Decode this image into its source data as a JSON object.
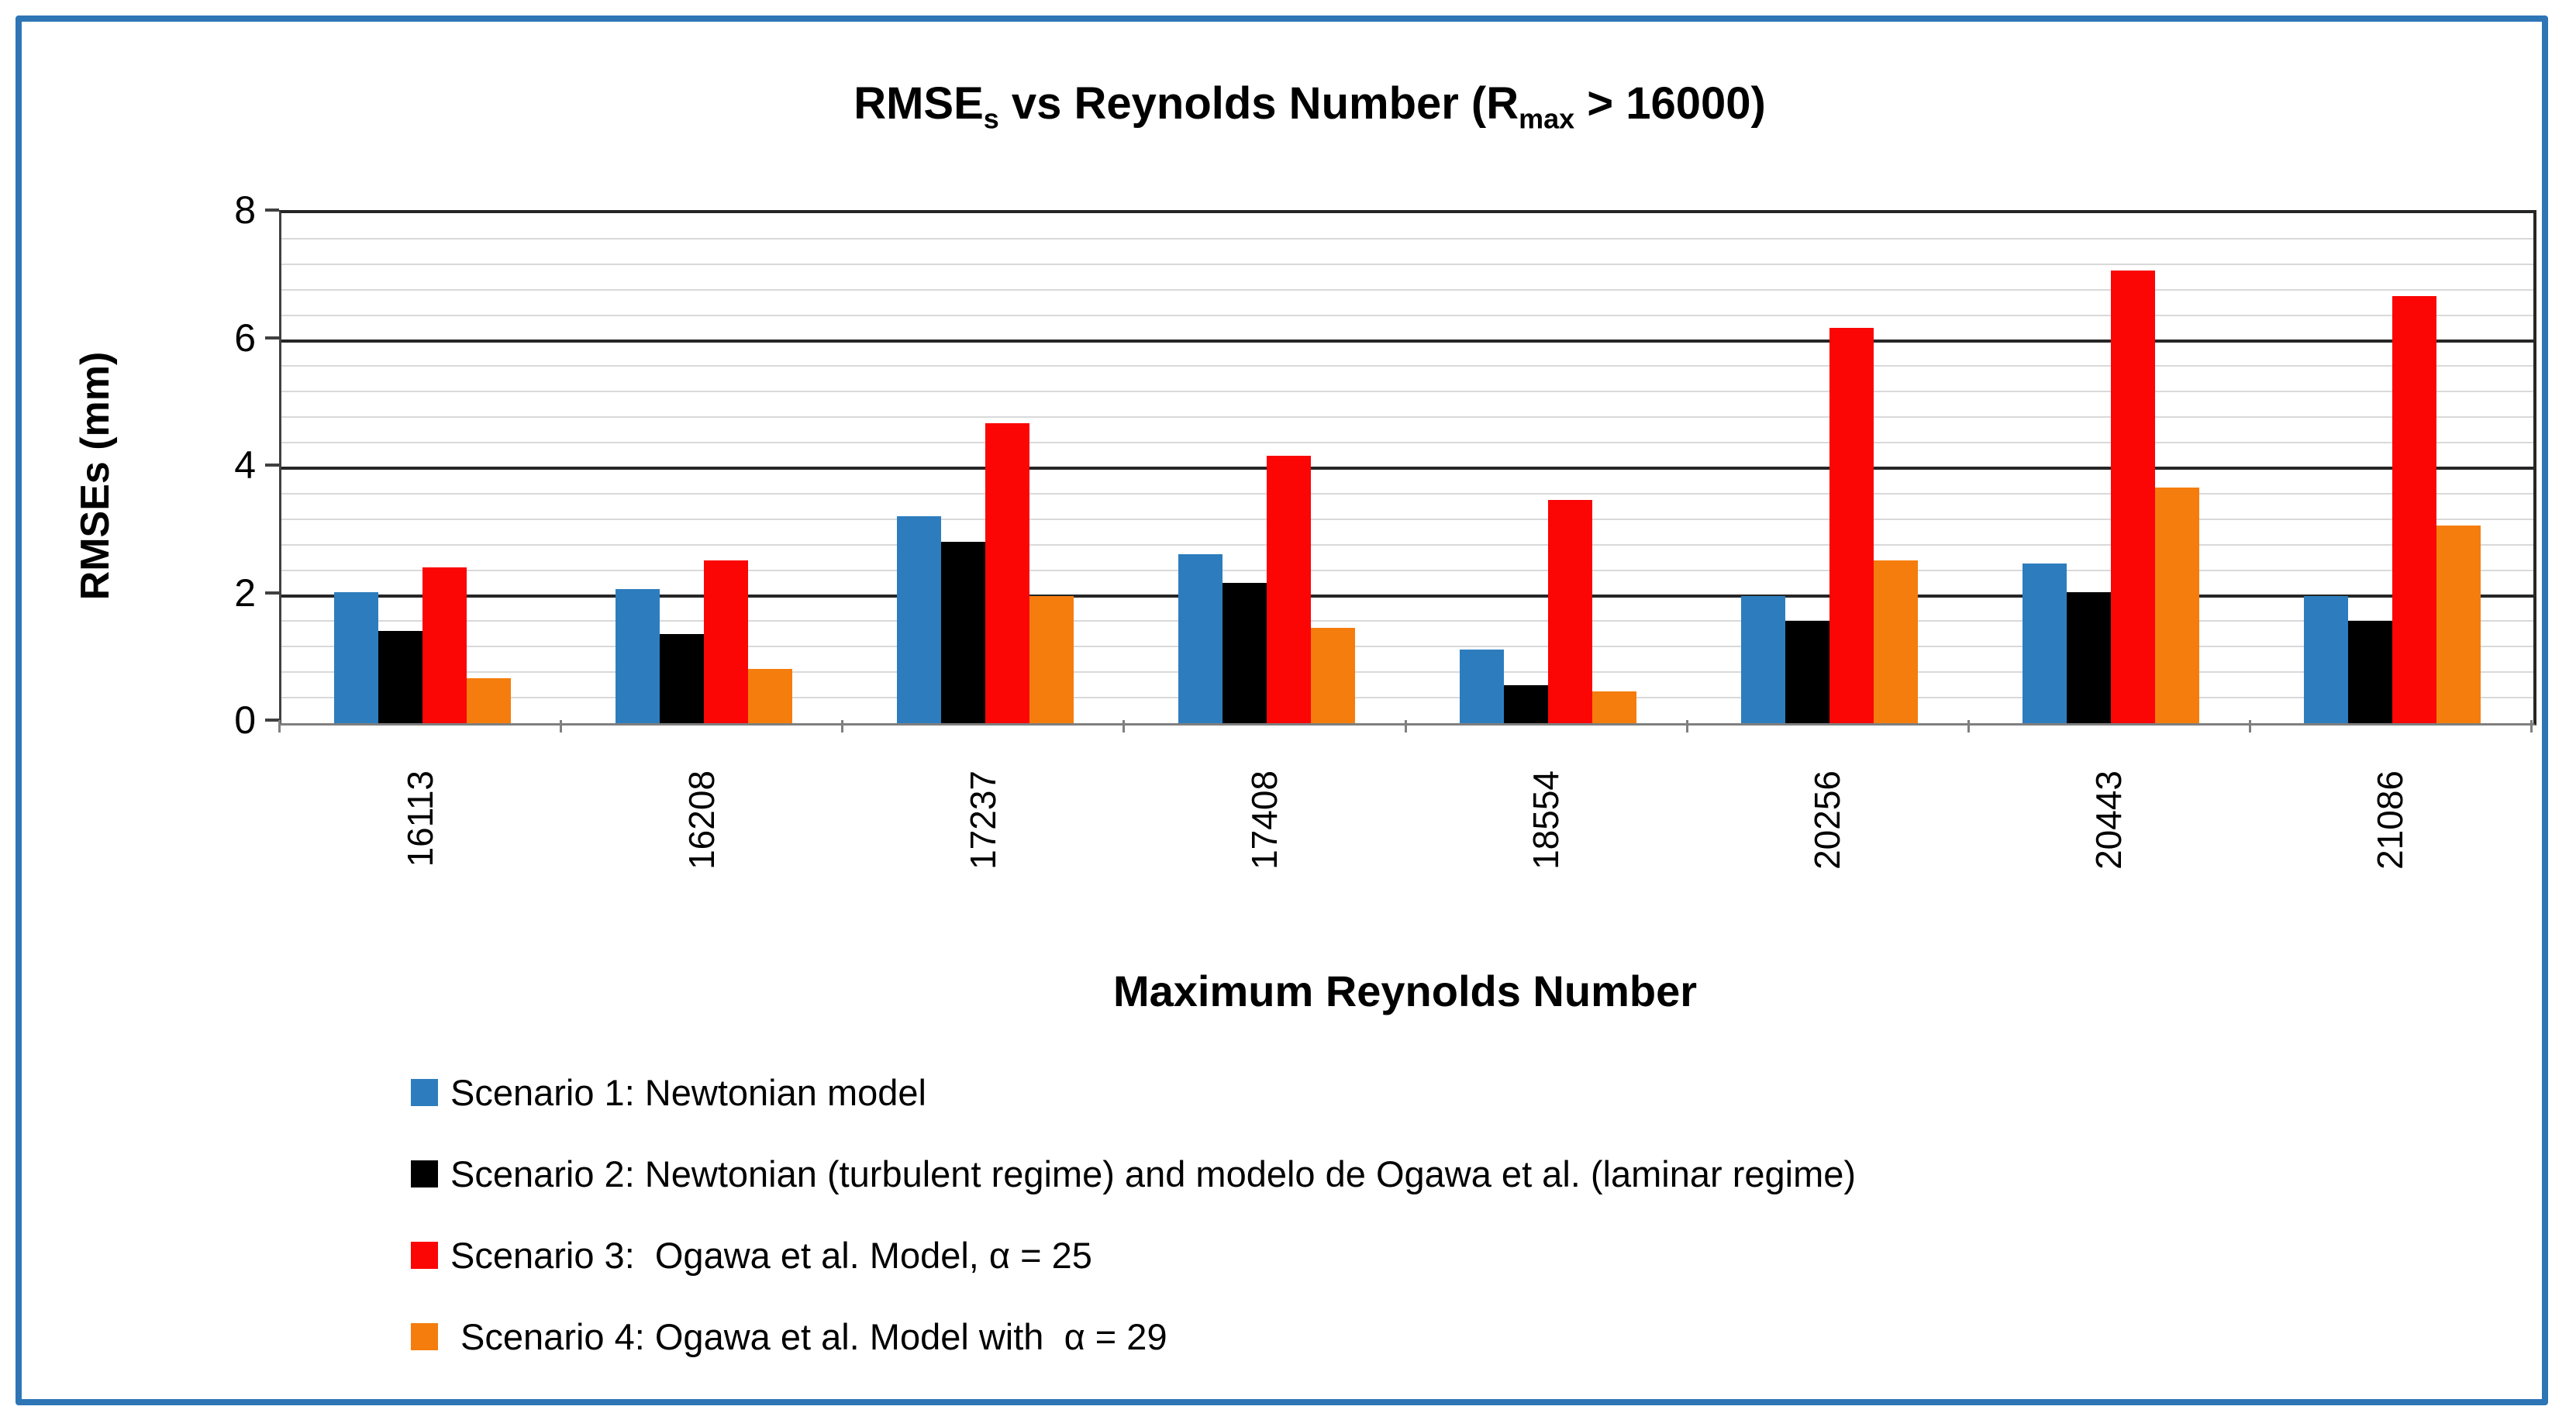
{
  "title": {
    "prefix": "RMSE",
    "sub1": "s",
    "mid": " vs Reynolds Number (R",
    "sub2": "max",
    "suffix": " > 16000)"
  },
  "y_axis": {
    "title": "RMSEs (mm)",
    "tick_labels": [
      "0",
      "2",
      "4",
      "6",
      "8"
    ]
  },
  "x_axis": {
    "title": "Maximum Reynolds Number"
  },
  "legend": {
    "items": [
      {
        "label": "Scenario 1: Newtonian model",
        "color": "#2D7DBE"
      },
      {
        "label": "Scenario 2: Newtonian (turbulent regime) and modelo de Ogawa et al. (laminar regime)",
        "color": "#000000"
      },
      {
        "label": "Scenario 3:  Ogawa et al. Model, α = 25",
        "color": "#FB0505"
      },
      {
        "label": " Scenario 4: Ogawa et al. Model with  α = 29",
        "color": "#F57D0D"
      }
    ]
  },
  "colors": {
    "frame_border": "#2E75B6",
    "major_gridline": "#262626",
    "minor_gridline": "#D9D9D9",
    "axis_line": "#7F7F7F",
    "series_blue": "#2D7DBE",
    "series_black": "#000000",
    "series_red": "#FB0505",
    "series_orange": "#F57D0D"
  },
  "chart_data": {
    "type": "bar",
    "title": "RMSEs vs Reynolds Number (Rmax > 16000)",
    "xlabel": "Maximum Reynolds Number",
    "ylabel": "RMSEs (mm)",
    "ylim": [
      0,
      8
    ],
    "y_major_unit": 2,
    "y_minor_unit": 0.4,
    "grid": "horizontal major+minor",
    "legend_position": "bottom-left",
    "categories": [
      "16113",
      "16208",
      "17237",
      "17408",
      "18554",
      "20256",
      "20443",
      "21086"
    ],
    "series": [
      {
        "name": "Scenario 1: Newtonian model",
        "color": "#2D7DBE",
        "values": [
          2.05,
          2.1,
          3.25,
          2.65,
          1.15,
          2.0,
          2.5,
          2.0
        ]
      },
      {
        "name": "Scenario 2: Newtonian (turbulent regime) and modelo de Ogawa et al. (laminar regime)",
        "color": "#000000",
        "values": [
          1.45,
          1.4,
          2.85,
          2.2,
          0.6,
          1.6,
          2.05,
          1.6
        ]
      },
      {
        "name": "Scenario 3: Ogawa et al. Model, α = 25",
        "color": "#FB0505",
        "values": [
          2.45,
          2.55,
          4.7,
          4.2,
          3.5,
          6.2,
          7.1,
          6.7
        ]
      },
      {
        "name": "Scenario 4: Ogawa et al. Model with α = 29",
        "color": "#F57D0D",
        "values": [
          0.7,
          0.85,
          2.0,
          1.5,
          0.5,
          2.55,
          3.7,
          3.1
        ]
      }
    ]
  }
}
